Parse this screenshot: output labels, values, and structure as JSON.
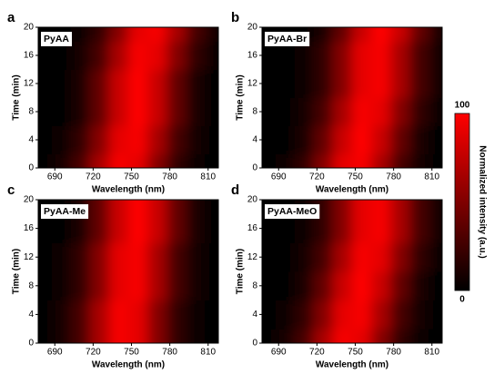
{
  "chart_data": [
    {
      "type": "heatmap",
      "panel": "a",
      "label": "PyAA",
      "xlabel": "Wavelength (nm)",
      "ylabel": "Time (min)",
      "x": [
        680,
        695,
        710,
        725,
        740,
        755,
        770,
        785,
        800,
        815
      ],
      "y": [
        0,
        4,
        8,
        12,
        16,
        20
      ],
      "z": [
        [
          1,
          8,
          28,
          66,
          97,
          90,
          52,
          19,
          4,
          1
        ],
        [
          1,
          4,
          19,
          52,
          90,
          97,
          66,
          28,
          8,
          1
        ],
        [
          0,
          2,
          12,
          39,
          79,
          100,
          79,
          39,
          12,
          2
        ],
        [
          0,
          2,
          12,
          39,
          79,
          100,
          79,
          39,
          12,
          2
        ],
        [
          0,
          1,
          8,
          28,
          66,
          97,
          90,
          52,
          19,
          4
        ],
        [
          0,
          1,
          4,
          19,
          52,
          90,
          97,
          66,
          28,
          8
        ]
      ],
      "xlim": [
        677,
        818
      ],
      "ylim": [
        0,
        20
      ],
      "xticks": [
        690,
        720,
        750,
        780,
        810
      ],
      "yticks": [
        0,
        4,
        8,
        12,
        16,
        20
      ],
      "zlim": [
        0,
        100
      ],
      "colors": [
        "#000000",
        "#ff0000"
      ]
    },
    {
      "type": "heatmap",
      "panel": "b",
      "label": "PyAA-Br",
      "xlabel": "Wavelength (nm)",
      "ylabel": "Time (min)",
      "x": [
        680,
        695,
        710,
        725,
        740,
        755,
        770,
        785,
        800,
        815
      ],
      "y": [
        0,
        4,
        8,
        12,
        16,
        20
      ],
      "z": [
        [
          1,
          4,
          19,
          52,
          90,
          97,
          66,
          28,
          8,
          1
        ],
        [
          0,
          2,
          12,
          39,
          79,
          100,
          79,
          39,
          12,
          2
        ],
        [
          0,
          1,
          8,
          28,
          66,
          97,
          90,
          52,
          19,
          4
        ],
        [
          0,
          1,
          4,
          19,
          52,
          90,
          97,
          66,
          28,
          8
        ],
        [
          0,
          1,
          4,
          19,
          52,
          90,
          97,
          66,
          28,
          8
        ],
        [
          0,
          0,
          2,
          12,
          39,
          79,
          100,
          79,
          39,
          12
        ]
      ],
      "xlim": [
        677,
        818
      ],
      "ylim": [
        0,
        20
      ],
      "xticks": [
        690,
        720,
        750,
        780,
        810
      ],
      "yticks": [
        0,
        4,
        8,
        12,
        16,
        20
      ],
      "zlim": [
        0,
        100
      ],
      "colors": [
        "#000000",
        "#ff0000"
      ]
    },
    {
      "type": "heatmap",
      "panel": "c",
      "label": "PyAA-Me",
      "xlabel": "Wavelength (nm)",
      "ylabel": "Time (min)",
      "x": [
        680,
        695,
        710,
        725,
        740,
        755,
        770,
        785,
        800,
        815
      ],
      "y": [
        0,
        4,
        8,
        12,
        16,
        20
      ],
      "z": [
        [
          1,
          8,
          28,
          66,
          97,
          90,
          52,
          19,
          4,
          1
        ],
        [
          1,
          8,
          28,
          66,
          97,
          90,
          52,
          19,
          4,
          1
        ],
        [
          1,
          4,
          19,
          52,
          90,
          97,
          66,
          28,
          8,
          1
        ],
        [
          1,
          4,
          19,
          52,
          90,
          97,
          66,
          28,
          8,
          1
        ],
        [
          0,
          2,
          12,
          39,
          79,
          100,
          79,
          39,
          12,
          2
        ],
        [
          0,
          2,
          12,
          39,
          79,
          100,
          79,
          39,
          12,
          2
        ]
      ],
      "xlim": [
        677,
        818
      ],
      "ylim": [
        0,
        20
      ],
      "xticks": [
        690,
        720,
        750,
        780,
        810
      ],
      "yticks": [
        0,
        4,
        8,
        12,
        16,
        20
      ],
      "zlim": [
        0,
        100
      ],
      "colors": [
        "#000000",
        "#ff0000"
      ]
    },
    {
      "type": "heatmap",
      "panel": "d",
      "label": "PyAA-MeO",
      "xlabel": "Wavelength (nm)",
      "ylabel": "Time (min)",
      "x": [
        680,
        695,
        710,
        725,
        740,
        755,
        770,
        785,
        800,
        815
      ],
      "y": [
        0,
        4,
        8,
        12,
        16,
        20
      ],
      "z": [
        [
          1,
          8,
          28,
          66,
          97,
          90,
          52,
          19,
          4,
          1
        ],
        [
          1,
          4,
          19,
          52,
          90,
          97,
          66,
          28,
          8,
          1
        ],
        [
          0,
          2,
          12,
          39,
          79,
          100,
          79,
          39,
          12,
          2
        ],
        [
          0,
          1,
          8,
          28,
          66,
          97,
          90,
          52,
          19,
          4
        ],
        [
          0,
          1,
          4,
          19,
          52,
          90,
          97,
          66,
          28,
          8
        ],
        [
          0,
          1,
          4,
          19,
          52,
          90,
          97,
          66,
          28,
          8
        ]
      ],
      "xlim": [
        677,
        818
      ],
      "ylim": [
        0,
        20
      ],
      "xticks": [
        690,
        720,
        750,
        780,
        810
      ],
      "yticks": [
        0,
        4,
        8,
        12,
        16,
        20
      ],
      "zlim": [
        0,
        100
      ],
      "colors": [
        "#000000",
        "#ff0000"
      ]
    },
    {
      "type": "colorbar",
      "label": "Normalized intensity (a.u.)",
      "zlim": [
        0,
        100
      ],
      "ticks": [
        0,
        100
      ],
      "colors": [
        "#000000",
        "#ff0000"
      ]
    }
  ]
}
